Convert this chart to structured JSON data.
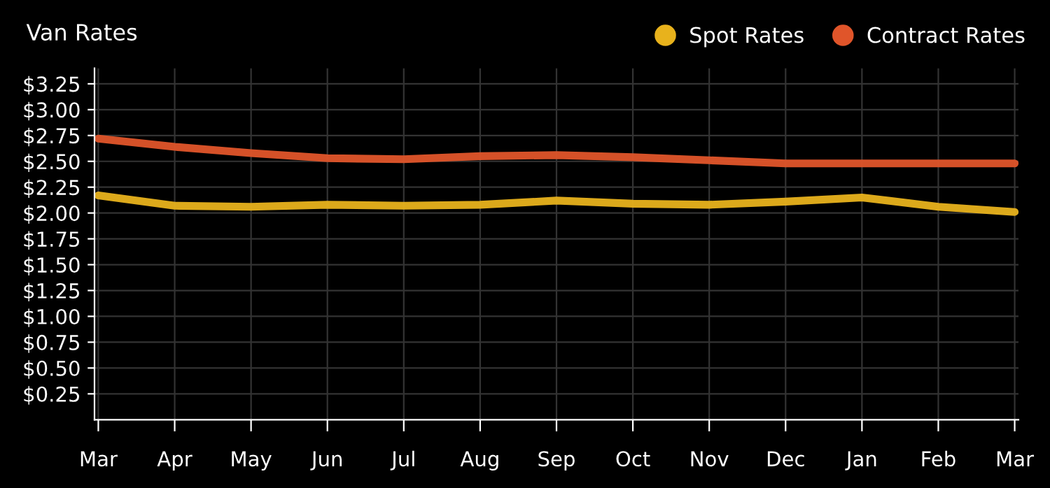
{
  "chart_data": {
    "type": "line",
    "title": "Van Rates",
    "categories": [
      "Mar",
      "Apr",
      "May",
      "Jun",
      "Jul",
      "Aug",
      "Sep",
      "Oct",
      "Nov",
      "Dec",
      "Jan",
      "Feb",
      "Mar"
    ],
    "series": [
      {
        "name": "Spot Rates",
        "color": "#e8b21c",
        "values": [
          2.17,
          2.07,
          2.06,
          2.08,
          2.07,
          2.08,
          2.12,
          2.09,
          2.08,
          2.11,
          2.15,
          2.06,
          2.01
        ]
      },
      {
        "name": "Contract Rates",
        "color": "#e0552a",
        "values": [
          2.72,
          2.64,
          2.58,
          2.53,
          2.52,
          2.55,
          2.56,
          2.54,
          2.51,
          2.48,
          2.48,
          2.48,
          2.48
        ]
      }
    ],
    "ylim": [
      0,
      3.4
    ],
    "yticks": [
      {
        "value": 0.25,
        "label": "$0.25"
      },
      {
        "value": 0.5,
        "label": "$0.50"
      },
      {
        "value": 0.75,
        "label": "$0.75"
      },
      {
        "value": 1.0,
        "label": "$1.00"
      },
      {
        "value": 1.25,
        "label": "$1.25"
      },
      {
        "value": 1.5,
        "label": "$1.50"
      },
      {
        "value": 1.75,
        "label": "$1.75"
      },
      {
        "value": 2.0,
        "label": "$2.00"
      },
      {
        "value": 2.25,
        "label": "$2.25"
      },
      {
        "value": 2.5,
        "label": "$2.50"
      },
      {
        "value": 2.75,
        "label": "$2.75"
      },
      {
        "value": 3.0,
        "label": "$3.00"
      },
      {
        "value": 3.25,
        "label": "$3.25"
      }
    ],
    "grid": true,
    "legend": "top right",
    "marker": "none",
    "line_style": "solid"
  }
}
